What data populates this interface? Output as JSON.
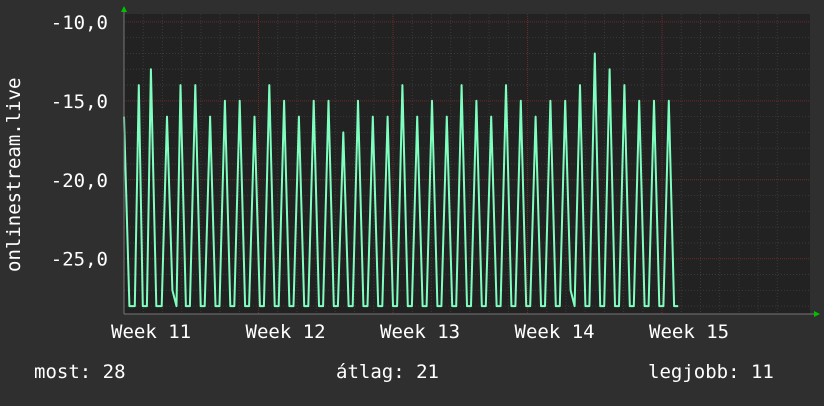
{
  "chart_data": {
    "type": "line",
    "ylabel": "onlinestream.live",
    "ylim": [
      -28.5,
      -9.5
    ],
    "y_ticks": [
      {
        "value": -10,
        "label": "-10,0"
      },
      {
        "value": -15,
        "label": "-15,0"
      },
      {
        "value": -20,
        "label": "-20,0"
      },
      {
        "value": -25,
        "label": "-25,0"
      }
    ],
    "xlim": [
      0,
      5.1
    ],
    "x_ticks": [
      {
        "value": 0,
        "label": "Week 11"
      },
      {
        "value": 1,
        "label": "Week 12"
      },
      {
        "value": 2,
        "label": "Week 13"
      },
      {
        "value": 3,
        "label": "Week 14"
      },
      {
        "value": 4,
        "label": "Week 15"
      }
    ],
    "grid": true,
    "series": [
      {
        "color": "#7fffbf",
        "points": [
          [
            0.0,
            -16
          ],
          [
            0.04,
            -28
          ],
          [
            0.08,
            -28
          ],
          [
            0.11,
            -14
          ],
          [
            0.14,
            -28
          ],
          [
            0.17,
            -28
          ],
          [
            0.2,
            -13
          ],
          [
            0.24,
            -28
          ],
          [
            0.28,
            -28
          ],
          [
            0.32,
            -16
          ],
          [
            0.36,
            -27
          ],
          [
            0.39,
            -28
          ],
          [
            0.42,
            -14
          ],
          [
            0.46,
            -28
          ],
          [
            0.49,
            -28
          ],
          [
            0.53,
            -14
          ],
          [
            0.57,
            -28
          ],
          [
            0.6,
            -28
          ],
          [
            0.64,
            -16
          ],
          [
            0.68,
            -28
          ],
          [
            0.71,
            -28
          ],
          [
            0.75,
            -15
          ],
          [
            0.79,
            -28
          ],
          [
            0.82,
            -28
          ],
          [
            0.86,
            -15
          ],
          [
            0.9,
            -28
          ],
          [
            0.93,
            -28
          ],
          [
            0.97,
            -16
          ],
          [
            1.01,
            -28
          ],
          [
            1.04,
            -28
          ],
          [
            1.08,
            -14
          ],
          [
            1.12,
            -28
          ],
          [
            1.15,
            -28
          ],
          [
            1.19,
            -15
          ],
          [
            1.23,
            -28
          ],
          [
            1.26,
            -28
          ],
          [
            1.3,
            -16
          ],
          [
            1.34,
            -28
          ],
          [
            1.37,
            -28
          ],
          [
            1.41,
            -15
          ],
          [
            1.45,
            -28
          ],
          [
            1.48,
            -28
          ],
          [
            1.52,
            -15
          ],
          [
            1.56,
            -28
          ],
          [
            1.59,
            -28
          ],
          [
            1.63,
            -17
          ],
          [
            1.67,
            -28
          ],
          [
            1.7,
            -28
          ],
          [
            1.74,
            -15
          ],
          [
            1.78,
            -28
          ],
          [
            1.81,
            -28
          ],
          [
            1.85,
            -16
          ],
          [
            1.89,
            -28
          ],
          [
            1.92,
            -28
          ],
          [
            1.96,
            -16
          ],
          [
            2.0,
            -28
          ],
          [
            2.03,
            -28
          ],
          [
            2.07,
            -14
          ],
          [
            2.11,
            -28
          ],
          [
            2.14,
            -28
          ],
          [
            2.18,
            -16
          ],
          [
            2.22,
            -28
          ],
          [
            2.25,
            -28
          ],
          [
            2.29,
            -15
          ],
          [
            2.33,
            -28
          ],
          [
            2.36,
            -28
          ],
          [
            2.4,
            -16
          ],
          [
            2.44,
            -28
          ],
          [
            2.47,
            -28
          ],
          [
            2.51,
            -14
          ],
          [
            2.55,
            -28
          ],
          [
            2.58,
            -28
          ],
          [
            2.62,
            -15
          ],
          [
            2.66,
            -28
          ],
          [
            2.69,
            -28
          ],
          [
            2.73,
            -16
          ],
          [
            2.77,
            -28
          ],
          [
            2.8,
            -28
          ],
          [
            2.84,
            -14
          ],
          [
            2.88,
            -28
          ],
          [
            2.91,
            -28
          ],
          [
            2.95,
            -15
          ],
          [
            2.99,
            -28
          ],
          [
            3.02,
            -28
          ],
          [
            3.06,
            -16
          ],
          [
            3.1,
            -28
          ],
          [
            3.13,
            -28
          ],
          [
            3.17,
            -15
          ],
          [
            3.21,
            -28
          ],
          [
            3.24,
            -28
          ],
          [
            3.28,
            -15
          ],
          [
            3.32,
            -27
          ],
          [
            3.35,
            -28
          ],
          [
            3.39,
            -14
          ],
          [
            3.43,
            -28
          ],
          [
            3.46,
            -28
          ],
          [
            3.5,
            -12
          ],
          [
            3.54,
            -28
          ],
          [
            3.57,
            -28
          ],
          [
            3.61,
            -13
          ],
          [
            3.65,
            -28
          ],
          [
            3.68,
            -28
          ],
          [
            3.72,
            -14
          ],
          [
            3.76,
            -28
          ],
          [
            3.79,
            -28
          ],
          [
            3.83,
            -15
          ],
          [
            3.87,
            -28
          ],
          [
            3.9,
            -28
          ],
          [
            3.94,
            -15
          ],
          [
            3.98,
            -28
          ],
          [
            4.01,
            -28
          ],
          [
            4.05,
            -15
          ],
          [
            4.09,
            -28
          ],
          [
            4.12,
            -28
          ]
        ]
      }
    ]
  },
  "footer": {
    "current": "most: 28",
    "average": "átlag: 21",
    "best": "legjobb: 11"
  },
  "colors": {
    "background": "#2f2f2f",
    "plot_background": "#222222",
    "grid_minor": "#3a3a3a",
    "grid_major": "#6e2a2a",
    "line": "#7fffbf",
    "axis_arrow": "#00c000",
    "text": "#ffffff"
  }
}
